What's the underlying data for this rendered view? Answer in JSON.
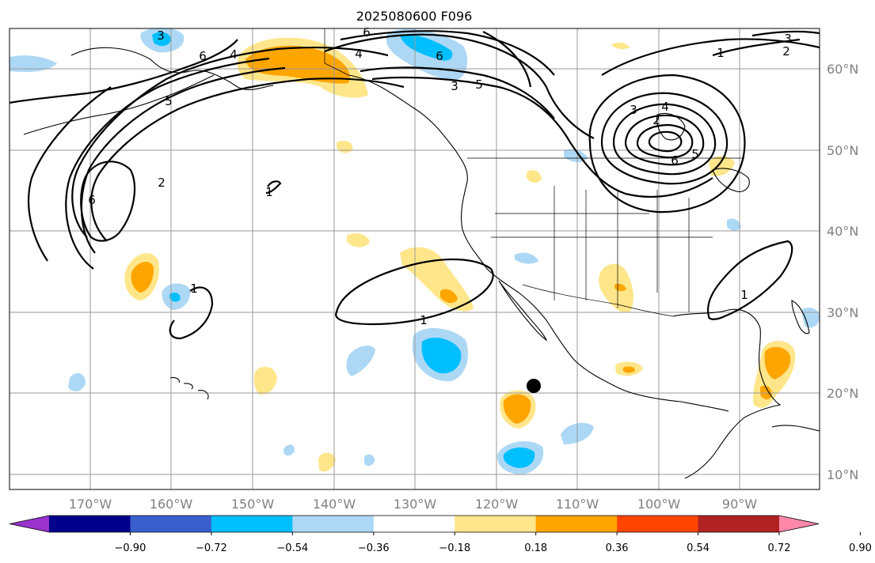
{
  "title": "2025080600 F096",
  "lat_labels": [
    "60°N",
    "50°N",
    "40°N",
    "30°N",
    "20°N",
    "10°N"
  ],
  "lon_labels": [
    "170°W",
    "160°W",
    "150°W",
    "140°W",
    "130°W",
    "120°W",
    "110°W",
    "100°W",
    "90°W"
  ],
  "contour_labels": [
    "1",
    "2",
    "3",
    "4",
    "5",
    "6"
  ],
  "colorbar": {
    "ticks": [
      "−0.90",
      "−0.72",
      "−0.54",
      "−0.36",
      "−0.18",
      "0.18",
      "0.36",
      "0.54",
      "0.72",
      "0.90"
    ],
    "colors": [
      "#9a32cd",
      "#00008b",
      "#3a5fcd",
      "#00bfff",
      "#add8f5",
      "#ffffff",
      "#ffe68a",
      "#ffa500",
      "#ff4500",
      "#b22222",
      "#ff88aa"
    ]
  },
  "colors": {
    "neg_light": "#add8f5",
    "neg_strong": "#00bfff",
    "pos_light": "#ffe68a",
    "pos_strong": "#ffa500",
    "pos_stronger": "#ff4500",
    "grid": "#9a9a9a",
    "axis_text": "#808080"
  }
}
